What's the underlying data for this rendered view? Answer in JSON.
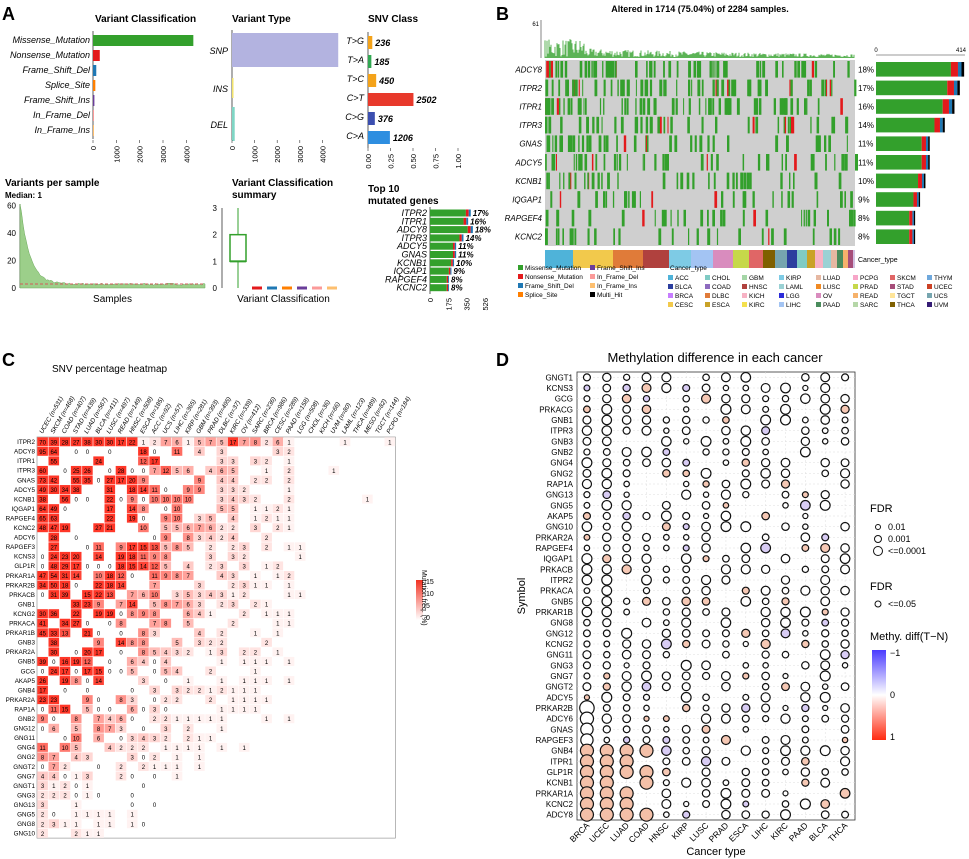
{
  "panels": {
    "a": "A",
    "b": "B",
    "c": "C",
    "d": "D"
  },
  "panel_a": {
    "variant_classification": {
      "title": "Variant Classification",
      "categories": [
        "Missense_Mutation",
        "Nonsense_Mutation",
        "Frame_Shift_Del",
        "Splice_Site",
        "Frame_Shift_Ins",
        "In_Frame_Del",
        "In_Frame_Ins"
      ],
      "values": [
        4300,
        290,
        140,
        100,
        60,
        15,
        10
      ],
      "colors": [
        "#33a02c",
        "#e31a1c",
        "#1f78b4",
        "#ff7f00",
        "#6a3d9a",
        "#fb9a99",
        "#fdbf6f"
      ],
      "ticks": [
        "0",
        "1000",
        "2000",
        "3000",
        "4000"
      ],
      "xmax": 4800
    },
    "variant_type": {
      "title": "Variant Type",
      "categories": [
        "SNP",
        "INS",
        "DEL"
      ],
      "values": [
        4700,
        12,
        120
      ],
      "colors": [
        "#b3b3e0",
        "#f2e36a",
        "#7fd6c5"
      ],
      "ticks": [
        "0",
        "1000",
        "2000",
        "3000",
        "4000"
      ],
      "xmax": 5000
    },
    "snv_class": {
      "title": "SNV Class",
      "categories": [
        "T>G",
        "T>A",
        "T>C",
        "C>T",
        "C>G",
        "C>A"
      ],
      "values": [
        236,
        185,
        450,
        2502,
        376,
        1206
      ],
      "labels": [
        "236",
        "185",
        "450",
        "2502",
        "376",
        "1206"
      ],
      "colors": [
        "#f4a31a",
        "#31a852",
        "#f4a31a",
        "#e8392b",
        "#3b4fb0",
        "#2e8ee0"
      ],
      "ticks": [
        "0.00",
        "0.25",
        "0.50",
        "0.75",
        "1.00"
      ],
      "total": 4955
    },
    "variants_per_sample": {
      "title": "Variants per sample",
      "subtitle": "Median: 1",
      "yticks": [
        "0",
        "20",
        "40",
        "60"
      ],
      "xlabel": "Samples",
      "ymax": 61
    },
    "vc_summary": {
      "title": "Variant Classification",
      "title2": "summary",
      "yticks": [
        "0",
        "1",
        "2",
        "3"
      ],
      "xlabel": "Variant Classification",
      "box": {
        "q1": 1,
        "median": 1,
        "q3": 2,
        "min": 0,
        "max": 3
      },
      "colors": [
        "#33a02c",
        "#e31a1c",
        "#1f78b4",
        "#ff7f00",
        "#6a3d9a",
        "#fb9a99",
        "#fdbf6f"
      ]
    },
    "top10": {
      "title": "Top 10",
      "title2": "mutated genes",
      "genes": [
        "ITPR2",
        "ITPR1",
        "ADCY8",
        "ITPR3",
        "ADCY5",
        "GNAS",
        "KCNB1",
        "IQGAP1",
        "RAPGEF4",
        "KCNC2"
      ],
      "counts": [
        390,
        365,
        410,
        320,
        250,
        250,
        230,
        205,
        182,
        182
      ],
      "labels": [
        "17%",
        "16%",
        "18%",
        "14%",
        "11%",
        "11%",
        "10%",
        "9%",
        "8%",
        "8%"
      ],
      "ticks": [
        "0",
        "175",
        "350",
        "526"
      ],
      "xmax": 526
    }
  },
  "panel_b": {
    "title": "Altered in 1714 (75.04%) of 2284 samples.",
    "top_ymax": "61",
    "right_xticks": [
      "0",
      "414"
    ],
    "genes": [
      "ADCY8",
      "ITPR2",
      "ITPR1",
      "ITPR3",
      "GNAS",
      "ADCY5",
      "KCNB1",
      "IQGAP1",
      "RAPGEF4",
      "KCNC2"
    ],
    "percents": [
      "18%",
      "17%",
      "16%",
      "14%",
      "11%",
      "11%",
      "10%",
      "9%",
      "8%",
      "8%"
    ],
    "counts": [
      410,
      390,
      365,
      320,
      250,
      250,
      230,
      205,
      182,
      182
    ],
    "cancer_type_label": "Cancer_type",
    "mutation_legend": [
      {
        "label": "Missense_Mutation",
        "color": "#33a02c"
      },
      {
        "label": "Nonsense_Mutation",
        "color": "#e31a1c"
      },
      {
        "label": "Frame_Shift_Del",
        "color": "#1f78b4"
      },
      {
        "label": "Splice_Site",
        "color": "#ff7f00"
      },
      {
        "label": "Frame_Shift_Ins",
        "color": "#6a3d9a"
      },
      {
        "label": "In_Frame_Del",
        "color": "#fb9a99"
      },
      {
        "label": "In_Frame_Ins",
        "color": "#fdbf6f"
      },
      {
        "label": "Multi_Hit",
        "color": "#000000"
      }
    ],
    "cancer_legend_title": "Cancer_type",
    "cancer_types": [
      {
        "label": "ACC",
        "color": "#4fb3d9"
      },
      {
        "label": "BLCA",
        "color": "#2c3e9e"
      },
      {
        "label": "BRCA",
        "color": "#c77dff"
      },
      {
        "label": "CESC",
        "color": "#f2c94c"
      },
      {
        "label": "CHOL",
        "color": "#80cbc4"
      },
      {
        "label": "COAD",
        "color": "#8e6bbf"
      },
      {
        "label": "DLBC",
        "color": "#e07b39"
      },
      {
        "label": "ESCA",
        "color": "#c9a227"
      },
      {
        "label": "GBM",
        "color": "#a5d6a7"
      },
      {
        "label": "HNSC",
        "color": "#b0413e"
      },
      {
        "label": "KICH",
        "color": "#f7b2c4"
      },
      {
        "label": "KIRC",
        "color": "#f4e04d"
      },
      {
        "label": "KIRP",
        "color": "#7ecbe5"
      },
      {
        "label": "LAML",
        "color": "#9ad1d4"
      },
      {
        "label": "LGG",
        "color": "#2b2bd9"
      },
      {
        "label": "LIHC",
        "color": "#a3c4f3"
      },
      {
        "label": "LUAD",
        "color": "#e6b8a2"
      },
      {
        "label": "LUSC",
        "color": "#f08a24"
      },
      {
        "label": "OV",
        "color": "#d98cbe"
      },
      {
        "label": "PAAD",
        "color": "#4a8c5c"
      },
      {
        "label": "PCPG",
        "color": "#f7a6c8"
      },
      {
        "label": "PRAD",
        "color": "#c6d84a"
      },
      {
        "label": "READ",
        "color": "#f6b26b"
      },
      {
        "label": "SARC",
        "color": "#b6d7a8"
      },
      {
        "label": "SKCM",
        "color": "#e06666"
      },
      {
        "label": "STAD",
        "color": "#a64d79"
      },
      {
        "label": "TGCT",
        "color": "#ffe599"
      },
      {
        "label": "THCA",
        "color": "#7f6000"
      },
      {
        "label": "THYM",
        "color": "#6fa8dc"
      },
      {
        "label": "UCEC",
        "color": "#cc4125"
      },
      {
        "label": "UCS",
        "color": "#76a5af"
      },
      {
        "label": "UVM",
        "color": "#351c75"
      }
    ]
  },
  "panel_c": {
    "title": "SNV percentage heatmap",
    "cancers": [
      "UCEC (n=531)",
      "SKCM (n=468)",
      "COAD (n=407)",
      "STAD (n=439)",
      "LUAD (n=567)",
      "BLCA (n=411)",
      "LUSC (n=497)",
      "READ (n=149)",
      "HNSC (n=508)",
      "ESCA (n=185)",
      "ACC (n=92)",
      "UCS (n=57)",
      "LIHC (n=365)",
      "KIRP (n=281)",
      "GBM (n=393)",
      "PRAD (n=495)",
      "DLBC (n=37)",
      "KIRC (n=339)",
      "OV (n=412)",
      "SARC (n=236)",
      "BRCA (n=986)",
      "CESC (n=289)",
      "PAAD (n=158)",
      "LGG (n=508)",
      "CHOL (n=36)",
      "KICH (n=66)",
      "UVM (n=80)",
      "LAML (n=123)",
      "THCA (n=489)",
      "MESO (n=82)",
      "TGCT (n=144)",
      "PCPG (n=184)"
    ],
    "genes": [
      "ITPR2",
      "ADCY8",
      "ITPR1",
      "ITPR3",
      "GNAS",
      "ADCY5",
      "KCNB1",
      "IQGAP1",
      "RAPGEF4",
      "KCNC2",
      "ADCY6",
      "RAPGEF3",
      "KCNS3",
      "GLP1R",
      "PRKAR1A",
      "PRKAR2B",
      "PRKACB",
      "GNB1",
      "KCNG2",
      "PRKACA",
      "PRKAR1B",
      "GNB3",
      "PRKAR2A",
      "GNB5",
      "GCG",
      "AKAP5",
      "GNB4",
      "PRKAR2A",
      "RAP1A",
      "GNB2",
      "GNG12",
      "GNG11",
      "GNG4",
      "GNG2",
      "GNGT2",
      "GNG7",
      "GNGT1",
      "GNG3",
      "GNG13",
      "GNG5",
      "GNG8",
      "GNG10"
    ],
    "row0": [
      "70",
      "39",
      "28",
      "27",
      "38",
      "30",
      "30",
      "17",
      "22",
      "1",
      "2",
      "7",
      "6",
      "1",
      "5",
      "7",
      "5",
      "17",
      "7",
      "8",
      "2",
      "6",
      "1"
    ],
    "legend_title": "Mutation freq. (%)",
    "legend_ticks": [
      "15",
      "10",
      "5",
      "0"
    ]
  },
  "panel_d": {
    "title": "Methylation difference in each cancer",
    "ylabel": "Symbol",
    "xlabel": "Cancer type",
    "cancers": [
      "BRCA",
      "UCEC",
      "LUAD",
      "COAD",
      "HNSC",
      "KIRP",
      "LUSC",
      "PRAD",
      "ESCA",
      "LIHC",
      "KIRC",
      "PAAD",
      "BLCA",
      "THCA"
    ],
    "genes": [
      "GNGT1",
      "KCNS3",
      "GCG",
      "PRKACG",
      "GNB1",
      "ITPR3",
      "GNB3",
      "GNB2",
      "GNG4",
      "GNG2",
      "RAP1A",
      "GNG13",
      "GNG5",
      "AKAP5",
      "GNG10",
      "PRKAR2A",
      "RAPGEF4",
      "IQGAP1",
      "PRKACB",
      "ITPR2",
      "PRKACA",
      "GNB5",
      "PRKAR1B",
      "GNG8",
      "GNG12",
      "KCNG2",
      "GNG11",
      "GNG3",
      "GNG7",
      "GNGT2",
      "ADCY5",
      "PRKAR2B",
      "ADCY6",
      "GNAS",
      "RAPGEF3",
      "GNB4",
      "ITPR1",
      "GLP1R",
      "KCNB1",
      "PRKAR1A",
      "KCNC2",
      "ADCY8"
    ],
    "fdr_title": "FDR",
    "fdr_sizes": [
      "0.01",
      "0.001",
      "<=0.0001"
    ],
    "fdr2_title": "FDR",
    "fdr2_label": "<=0.05",
    "color_title": "Methy. diff(T−N)",
    "color_ticks": [
      "−1",
      "0",
      "1"
    ]
  }
}
